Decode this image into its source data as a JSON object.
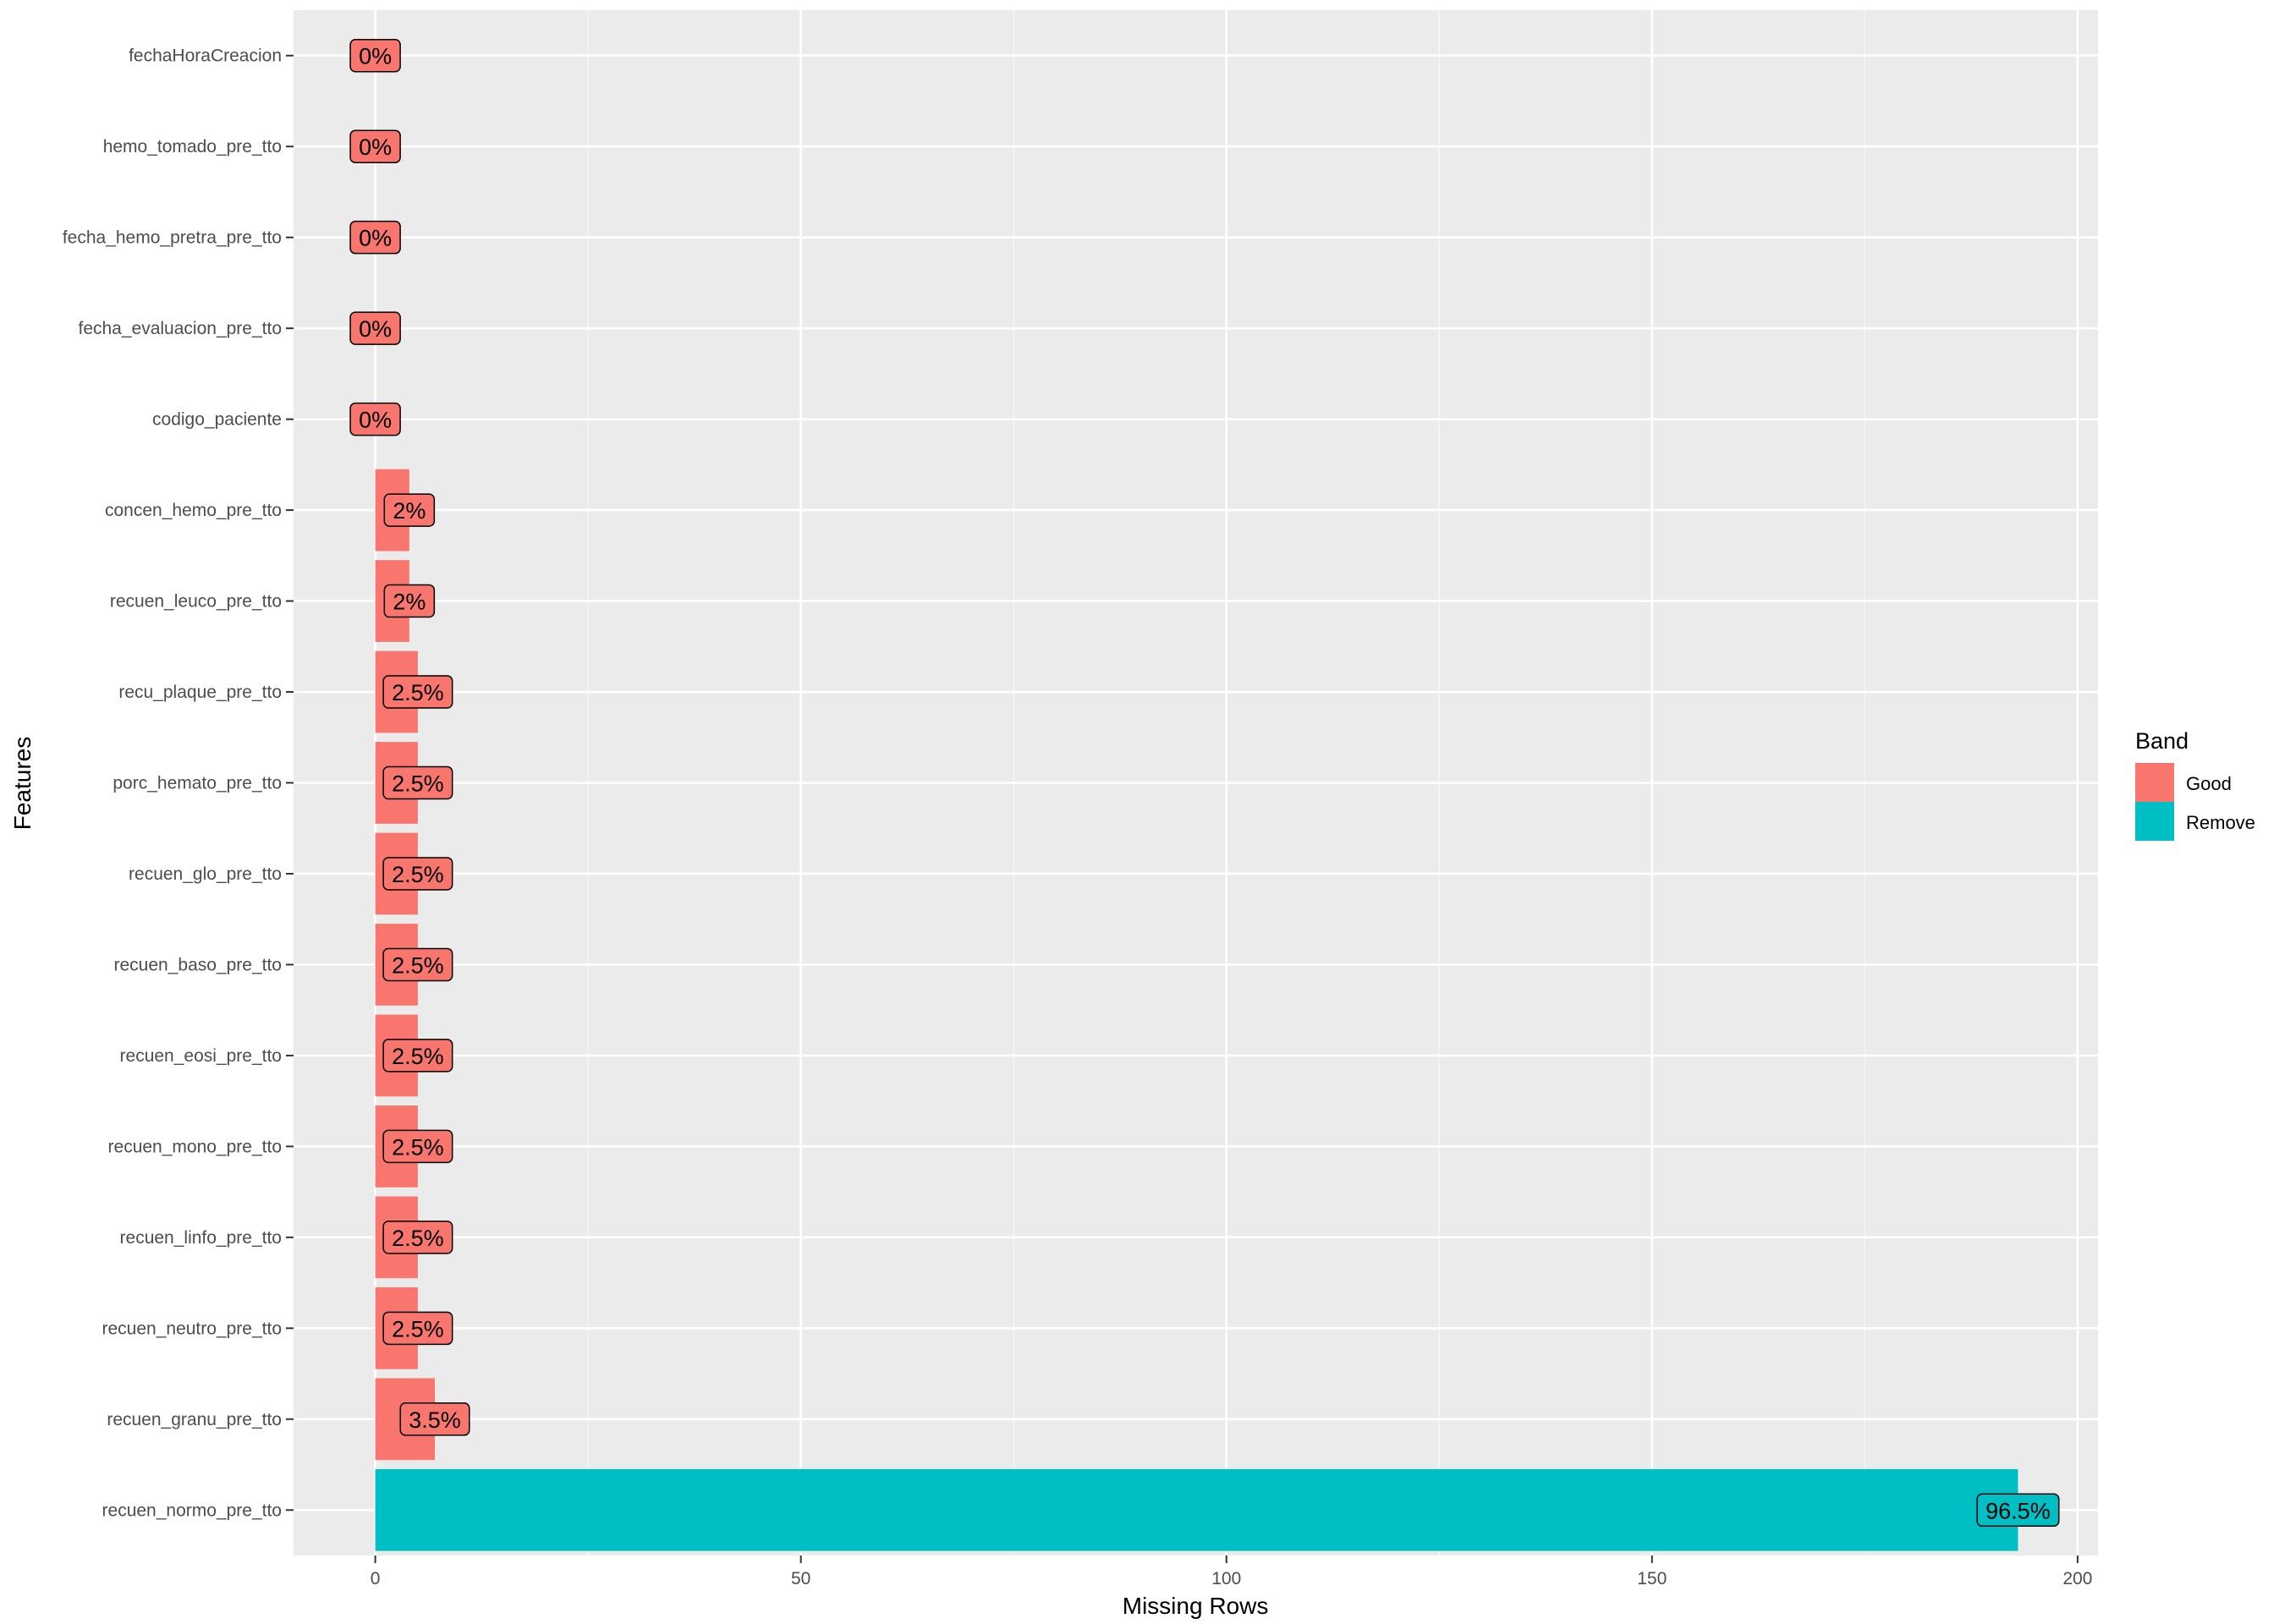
{
  "chart_data": {
    "type": "bar",
    "orientation": "horizontal",
    "title": "",
    "xlabel": "Missing Rows",
    "ylabel": "Features",
    "xlim": [
      -9.6,
      202.4
    ],
    "xticks": [
      0,
      50,
      100,
      150,
      200
    ],
    "grid": true,
    "categories": [
      "fechaHoraCreacion",
      "hemo_tomado_pre_tto",
      "fecha_hemo_pretra_pre_tto",
      "fecha_evaluacion_pre_tto",
      "codigo_paciente",
      "concen_hemo_pre_tto",
      "recuen_leuco_pre_tto",
      "recu_plaque_pre_tto",
      "porc_hemato_pre_tto",
      "recuen_glo_pre_tto",
      "recuen_baso_pre_tto",
      "recuen_eosi_pre_tto",
      "recuen_mono_pre_tto",
      "recuen_linfo_pre_tto",
      "recuen_neutro_pre_tto",
      "recuen_granu_pre_tto",
      "recuen_normo_pre_tto"
    ],
    "values": [
      0,
      0,
      0,
      0,
      0,
      4,
      4,
      5,
      5,
      5,
      5,
      5,
      5,
      5,
      5,
      7,
      193
    ],
    "labels": [
      "0%",
      "0%",
      "0%",
      "0%",
      "0%",
      "2%",
      "2%",
      "2.5%",
      "2.5%",
      "2.5%",
      "2.5%",
      "2.5%",
      "2.5%",
      "2.5%",
      "2.5%",
      "3.5%",
      "96.5%"
    ],
    "bands": [
      "Good",
      "Good",
      "Good",
      "Good",
      "Good",
      "Good",
      "Good",
      "Good",
      "Good",
      "Good",
      "Good",
      "Good",
      "Good",
      "Good",
      "Good",
      "Good",
      "Remove"
    ],
    "legend": {
      "title": "Band",
      "placement": "right",
      "entries": [
        {
          "name": "Good",
          "color": "#F8766D"
        },
        {
          "name": "Remove",
          "color": "#00BFC4"
        }
      ]
    }
  }
}
